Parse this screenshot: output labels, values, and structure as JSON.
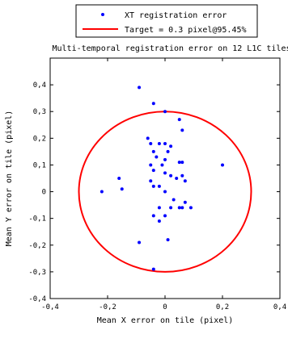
{
  "chart_data": {
    "type": "scatter",
    "title": "Multi-temporal registration error on 12 L1C tiles",
    "xlabel": "Mean X error on tile (pixel)",
    "ylabel": "Mean Y error on tile (pixel)",
    "xlim": [
      -0.4,
      0.4
    ],
    "ylim": [
      -0.4,
      0.5
    ],
    "xticks": [
      -0.4,
      -0.2,
      0,
      0.2,
      0.4
    ],
    "xtick_labels": [
      "-0,4",
      "-0,2",
      "0",
      "0,2",
      "0,4"
    ],
    "yticks": [
      -0.4,
      -0.3,
      -0.2,
      -0.1,
      0,
      0.1,
      0.2,
      0.3,
      0.4
    ],
    "ytick_labels": [
      "-0,4",
      "-0,3",
      "-0,2",
      "-0,1",
      "0",
      "0,1",
      "0,2",
      "0,3",
      "0,4"
    ],
    "grid": false,
    "legend_position": "top-center-outside",
    "series": [
      {
        "name": "XT registration error",
        "kind": "scatter",
        "color": "#0000ff",
        "marker": "dot",
        "points": [
          [
            -0.09,
            0.39
          ],
          [
            -0.04,
            0.33
          ],
          [
            0.0,
            0.3
          ],
          [
            0.05,
            0.27
          ],
          [
            0.06,
            0.23
          ],
          [
            -0.06,
            0.2
          ],
          [
            -0.05,
            0.18
          ],
          [
            -0.02,
            0.18
          ],
          [
            0.0,
            0.18
          ],
          [
            0.02,
            0.17
          ],
          [
            -0.04,
            0.15
          ],
          [
            0.01,
            0.15
          ],
          [
            -0.03,
            0.13
          ],
          [
            0.0,
            0.12
          ],
          [
            -0.01,
            0.1
          ],
          [
            -0.05,
            0.1
          ],
          [
            0.06,
            0.11
          ],
          [
            0.05,
            0.11
          ],
          [
            0.2,
            0.1
          ],
          [
            -0.04,
            0.08
          ],
          [
            0.0,
            0.07
          ],
          [
            0.02,
            0.06
          ],
          [
            0.06,
            0.06
          ],
          [
            0.04,
            0.05
          ],
          [
            0.07,
            0.04
          ],
          [
            -0.16,
            0.05
          ],
          [
            -0.05,
            0.04
          ],
          [
            -0.04,
            0.02
          ],
          [
            -0.02,
            0.02
          ],
          [
            -0.22,
            0.0
          ],
          [
            -0.15,
            0.01
          ],
          [
            0.0,
            0.0
          ],
          [
            0.03,
            -0.03
          ],
          [
            0.07,
            -0.04
          ],
          [
            0.09,
            -0.06
          ],
          [
            0.06,
            -0.06
          ],
          [
            -0.02,
            -0.06
          ],
          [
            0.02,
            -0.06
          ],
          [
            0.05,
            -0.06
          ],
          [
            -0.04,
            -0.09
          ],
          [
            0.0,
            -0.09
          ],
          [
            -0.02,
            -0.11
          ],
          [
            -0.09,
            -0.19
          ],
          [
            0.01,
            -0.18
          ],
          [
            -0.04,
            -0.29
          ]
        ]
      },
      {
        "name": "Target = 0.3 pixel@95.45%",
        "kind": "circle",
        "color": "#ff0000",
        "center": [
          0,
          0
        ],
        "radius": 0.3
      }
    ]
  }
}
